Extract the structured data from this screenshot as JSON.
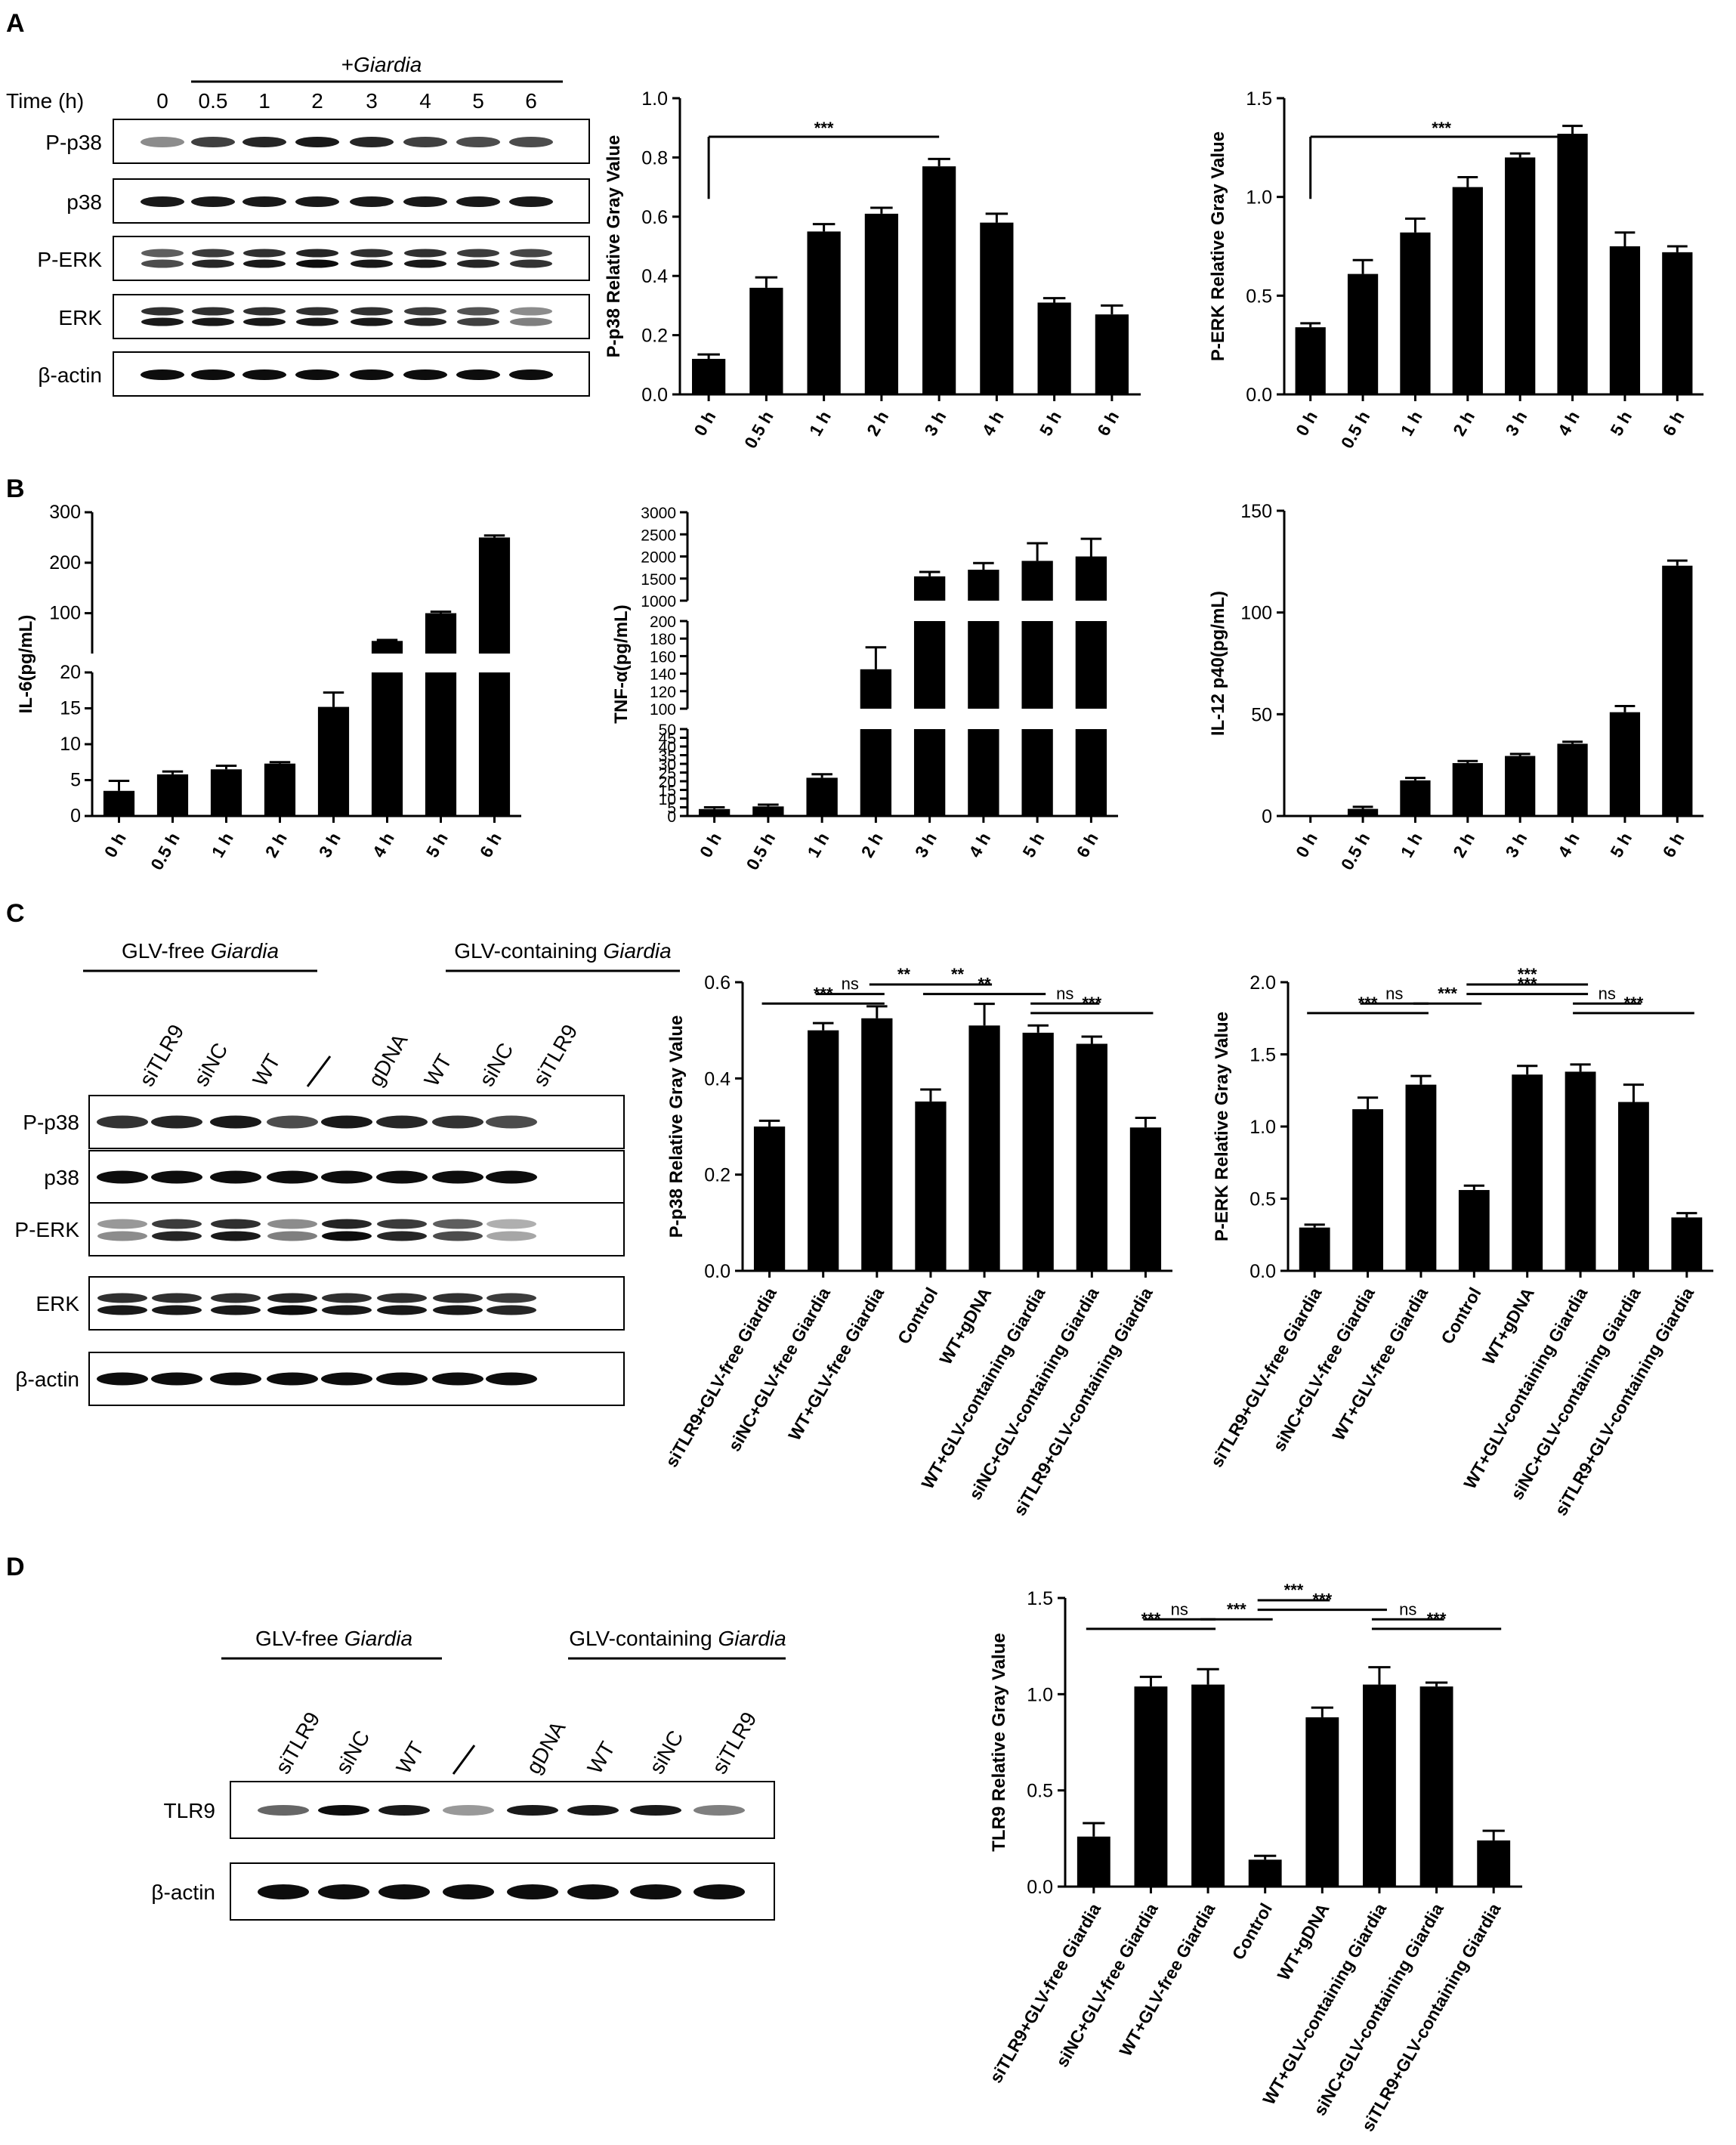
{
  "panels": {
    "A": "A",
    "B": "B",
    "C": "C",
    "D": "D"
  },
  "blotA": {
    "giardia_label": "+Giardia",
    "time_label": "Time  (h)",
    "lanes": [
      "0",
      "0.5",
      "1",
      "2",
      "3",
      "4",
      "5",
      "6"
    ],
    "rows": [
      "P-p38",
      "p38",
      "P-ERK",
      "ERK",
      "β-actin"
    ]
  },
  "blotC": {
    "group1": "GLV-free Giardia",
    "group2": "GLV-containing Giardia",
    "lanes": [
      "siTLR9",
      "siNC",
      "WT",
      "/",
      "gDNA",
      "WT",
      "siNC",
      "siTLR9"
    ],
    "rows": [
      "P-p38",
      "p38",
      "P-ERK",
      "ERK",
      "β-actin"
    ]
  },
  "blotD": {
    "group1": "GLV-free Giardia",
    "group2": "GLV-containing Giardia",
    "lanes": [
      "siTLR9",
      "siNC",
      "WT",
      "/",
      "gDNA",
      "WT",
      "siNC",
      "siTLR9"
    ],
    "rows": [
      "TLR9",
      "β-actin"
    ]
  },
  "chart_data": [
    {
      "id": "A1",
      "type": "bar",
      "ylabel": "P-p38 Relative Gray Value",
      "categories": [
        "0 h",
        "0.5 h",
        "1 h",
        "2 h",
        "3 h",
        "4 h",
        "5 h",
        "6 h"
      ],
      "values": [
        0.12,
        0.36,
        0.55,
        0.61,
        0.77,
        0.58,
        0.31,
        0.27
      ],
      "errors": [
        0.015,
        0.035,
        0.025,
        0.02,
        0.025,
        0.03,
        0.015,
        0.03
      ],
      "ylim": [
        0,
        1.0
      ],
      "ticks": [
        "0.0",
        "0.2",
        "0.4",
        "0.6",
        "0.8",
        "1.0"
      ],
      "sig": [
        {
          "from": 0,
          "to": 4,
          "label": "***"
        }
      ]
    },
    {
      "id": "A2",
      "type": "bar",
      "ylabel": "P-ERK Relative Gray Value",
      "categories": [
        "0 h",
        "0.5 h",
        "1 h",
        "2 h",
        "3 h",
        "4 h",
        "5 h",
        "6 h"
      ],
      "values": [
        0.34,
        0.61,
        0.82,
        1.05,
        1.2,
        1.32,
        0.75,
        0.72
      ],
      "errors": [
        0.02,
        0.07,
        0.07,
        0.05,
        0.02,
        0.04,
        0.07,
        0.03
      ],
      "ylim": [
        0,
        1.5
      ],
      "ticks": [
        "0.0",
        "0.5",
        "1.0",
        "1.5"
      ],
      "sig": [
        {
          "from": 0,
          "to": 5,
          "label": "***"
        }
      ]
    },
    {
      "id": "B1",
      "type": "bar",
      "ylabel": "IL-6(pg/mL)",
      "categories": [
        "0 h",
        "0.5 h",
        "1 h",
        "2 h",
        "3 h",
        "4 h",
        "5 h",
        "6 h"
      ],
      "values": [
        3.5,
        5.8,
        6.5,
        7.3,
        15.2,
        45,
        100,
        250
      ],
      "errors": [
        1.4,
        0.4,
        0.5,
        0.2,
        2.0,
        2,
        3,
        4
      ],
      "broken_axis": [
        [
          0,
          20
        ],
        [
          20,
          300
        ]
      ],
      "ticks": [
        "0",
        "5",
        "10",
        "15",
        "20",
        "100",
        "200",
        "300"
      ]
    },
    {
      "id": "B2",
      "type": "bar",
      "ylabel": "TNF-α(pg/mL)",
      "categories": [
        "0 h",
        "0.5 h",
        "1 h",
        "2 h",
        "3 h",
        "4 h",
        "5 h",
        "6 h"
      ],
      "values": [
        4,
        5.5,
        22,
        145,
        1550,
        1700,
        1900,
        2000
      ],
      "errors": [
        1,
        1,
        2,
        25,
        100,
        150,
        400,
        400
      ],
      "broken_axis": [
        [
          0,
          50
        ],
        [
          100,
          200
        ],
        [
          1000,
          3000
        ]
      ],
      "ticks": [
        "0",
        "5",
        "10",
        "15",
        "20",
        "25",
        "30",
        "35",
        "40",
        "45",
        "50",
        "100",
        "120",
        "140",
        "160",
        "180",
        "200",
        "1000",
        "1500",
        "2000",
        "2500",
        "3000"
      ]
    },
    {
      "id": "B3",
      "type": "bar",
      "ylabel": "IL-12 p40(pg/mL)",
      "categories": [
        "0 h",
        "0.5 h",
        "1 h",
        "2 h",
        "3 h",
        "4 h",
        "5 h",
        "6 h"
      ],
      "values": [
        0,
        3.5,
        17.5,
        26,
        29.5,
        35.5,
        51,
        123
      ],
      "errors": [
        0,
        1,
        1.2,
        1,
        1,
        1,
        3,
        2.5
      ],
      "ylim": [
        0,
        150
      ],
      "ticks": [
        "0",
        "50",
        "100",
        "150"
      ]
    },
    {
      "id": "C1",
      "type": "bar",
      "ylabel": "P-p38 Relative Gray Value",
      "categories": [
        "siTLR9+GLV-free Giardia",
        "siNC+GLV-free Giardia",
        "WT+GLV-free Giardia",
        "Control",
        "WT+gDNA",
        "WT+GLV-containing Giardia",
        "siNC+GLV-containing Giardia",
        "siTLR9+GLV-containing Giardia"
      ],
      "values": [
        0.3,
        0.5,
        0.525,
        0.352,
        0.51,
        0.495,
        0.472,
        0.298
      ],
      "errors": [
        0.012,
        0.015,
        0.025,
        0.025,
        0.045,
        0.015,
        0.015,
        0.02
      ],
      "ylim": [
        0,
        0.6
      ],
      "ticks": [
        "0.0",
        "0.2",
        "0.4",
        "0.6"
      ],
      "sig": [
        {
          "from": 0,
          "to": 2,
          "label": "***",
          "level": 2
        },
        {
          "from": 1,
          "to": 2,
          "label": "ns",
          "level": 3
        },
        {
          "from": 2,
          "to": 3,
          "label": "**",
          "level": 4
        },
        {
          "from": 3,
          "to": 4,
          "label": "**",
          "level": 4
        },
        {
          "from": 3,
          "to": 5,
          "label": "**",
          "level": 3
        },
        {
          "from": 5,
          "to": 6,
          "label": "ns",
          "level": 2
        },
        {
          "from": 5,
          "to": 7,
          "label": "***",
          "level": 1
        }
      ]
    },
    {
      "id": "C2",
      "type": "bar",
      "ylabel": "P-ERK Relative Gray Value",
      "categories": [
        "siTLR9+GLV-free Giardia",
        "siNC+GLV-free Giardia",
        "WT+GLV-free Giardia",
        "Control",
        "WT+gDNA",
        "WT+GLV-containing Giardia",
        "siNC+GLV-containing Giardia",
        "siTLR9+GLV-containing Giardia"
      ],
      "values": [
        0.3,
        1.12,
        1.29,
        0.56,
        1.36,
        1.38,
        1.17,
        0.37
      ],
      "errors": [
        0.02,
        0.08,
        0.06,
        0.03,
        0.06,
        0.05,
        0.12,
        0.03
      ],
      "ylim": [
        0,
        2.0
      ],
      "ticks": [
        "0.0",
        "0.5",
        "1.0",
        "1.5",
        "2.0"
      ],
      "sig": [
        {
          "from": 0,
          "to": 2,
          "label": "***",
          "level": 1
        },
        {
          "from": 1,
          "to": 2,
          "label": "ns",
          "level": 2
        },
        {
          "from": 2,
          "to": 3,
          "label": "***",
          "level": 2
        },
        {
          "from": 3,
          "to": 5,
          "label": "***",
          "level": 4
        },
        {
          "from": 5,
          "to": 6,
          "label": "ns",
          "level": 2
        },
        {
          "from": 3,
          "to": 5,
          "label": "***",
          "level": 3
        },
        {
          "from": 5,
          "to": 7,
          "label": "***",
          "level": 1
        }
      ]
    },
    {
      "id": "D1",
      "type": "bar",
      "ylabel": "TLR9 Relative Gray Value",
      "categories": [
        "siTLR9+GLV-free Giardia",
        "siNC+GLV-free Giardia",
        "WT+GLV-free Giardia",
        "Control",
        "WT+gDNA",
        "WT+GLV-containing Giardia",
        "siNC+GLV-containing Giardia",
        "siTLR9+GLV-containing Giardia"
      ],
      "values": [
        0.26,
        1.04,
        1.05,
        0.14,
        0.88,
        1.05,
        1.04,
        0.24
      ],
      "errors": [
        0.07,
        0.05,
        0.08,
        0.02,
        0.05,
        0.09,
        0.02,
        0.05
      ],
      "ylim": [
        0,
        1.5
      ],
      "ticks": [
        "0.0",
        "0.5",
        "1.0",
        "1.5"
      ],
      "sig": [
        {
          "from": 0,
          "to": 2,
          "label": "***",
          "level": 1
        },
        {
          "from": 1,
          "to": 2,
          "label": "ns",
          "level": 2
        },
        {
          "from": 2,
          "to": 3,
          "label": "***",
          "level": 2
        },
        {
          "from": 3,
          "to": 4,
          "label": "***",
          "level": 4
        },
        {
          "from": 3,
          "to": 5,
          "label": "***",
          "level": 3
        },
        {
          "from": 5,
          "to": 6,
          "label": "ns",
          "level": 2
        },
        {
          "from": 5,
          "to": 7,
          "label": "***",
          "level": 1
        }
      ]
    }
  ]
}
